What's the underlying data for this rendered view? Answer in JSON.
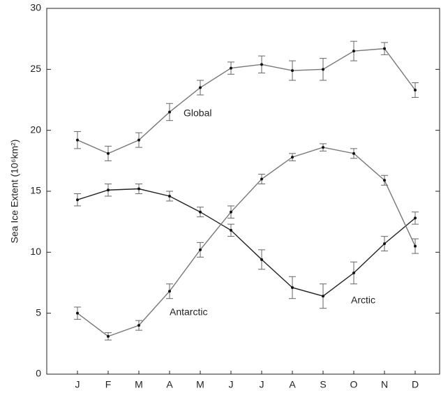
{
  "chart_data": {
    "type": "line",
    "y_label": "Sea Ice Extent (10⁶km²)",
    "categories": [
      "J",
      "F",
      "M",
      "A",
      "M",
      "J",
      "J",
      "A",
      "S",
      "O",
      "N",
      "D"
    ],
    "series": [
      {
        "name": "Global",
        "color": "#777777",
        "values": [
          19.2,
          18.1,
          19.2,
          21.5,
          23.5,
          25.1,
          25.4,
          24.9,
          25.0,
          26.5,
          26.7,
          23.3
        ],
        "errors": [
          0.7,
          0.6,
          0.6,
          0.7,
          0.6,
          0.5,
          0.7,
          0.8,
          0.9,
          0.8,
          0.5,
          0.6
        ]
      },
      {
        "name": "Arctic",
        "color": "#222222",
        "values": [
          14.3,
          15.1,
          15.2,
          14.6,
          13.3,
          11.8,
          9.4,
          7.1,
          6.4,
          8.3,
          10.7,
          12.8
        ],
        "errors": [
          0.5,
          0.5,
          0.4,
          0.4,
          0.4,
          0.5,
          0.8,
          0.9,
          1.0,
          0.9,
          0.6,
          0.5
        ]
      },
      {
        "name": "Antarctic",
        "color": "#777777",
        "values": [
          5.0,
          3.1,
          4.0,
          6.8,
          10.2,
          13.3,
          16.0,
          17.8,
          18.6,
          18.1,
          15.9,
          10.5
        ],
        "errors": [
          0.5,
          0.3,
          0.4,
          0.6,
          0.6,
          0.5,
          0.4,
          0.3,
          0.3,
          0.4,
          0.4,
          0.6
        ]
      }
    ],
    "ylim": [
      0,
      30
    ],
    "yticks": [
      0,
      5,
      10,
      15,
      20,
      25,
      30
    ]
  }
}
